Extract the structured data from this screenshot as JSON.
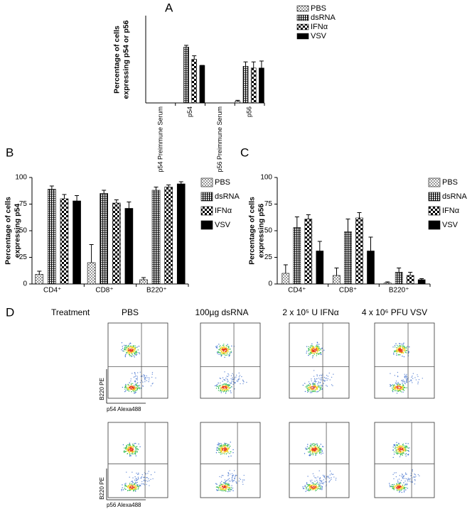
{
  "chart_data": [
    {
      "type": "bar",
      "panel": "A",
      "ylabel": [
        "Percentage of cells",
        "expressing p54 or p56"
      ],
      "categories": [
        "p54 Preimmune Serum",
        "p54",
        "p56 Preimmune Serum",
        "p56"
      ],
      "ylim": [
        0,
        100
      ],
      "series": [
        {
          "name": "PBS",
          "color": "#000000",
          "pattern": "dots",
          "values": [
            0,
            0,
            0,
            2
          ],
          "errors": [
            0,
            0,
            0,
            1
          ]
        },
        {
          "name": "dsRNA",
          "color": "#000000",
          "pattern": "stripes",
          "values": [
            0,
            64,
            0,
            42
          ],
          "errors": [
            0,
            2,
            0,
            5
          ]
        },
        {
          "name": "IFNα",
          "color": "#000000",
          "pattern": "checker",
          "values": [
            0,
            50,
            0,
            40
          ],
          "errors": [
            0,
            4,
            0,
            7
          ]
        },
        {
          "name": "VSV",
          "color": "#000000",
          "pattern": "solid",
          "values": [
            0,
            43,
            0,
            40
          ],
          "errors": [
            0,
            0,
            0,
            8
          ]
        }
      ]
    },
    {
      "type": "bar",
      "panel": "B",
      "ylabel": [
        "Percentage of cells",
        "expressing p54"
      ],
      "categories": [
        "CD4⁺",
        "CD8⁺",
        "B220⁺"
      ],
      "ylim": [
        0,
        100
      ],
      "yticks": [
        0,
        25,
        50,
        75,
        100
      ],
      "series": [
        {
          "name": "PBS",
          "color": "#000000",
          "pattern": "dots",
          "values": [
            9,
            20,
            4
          ],
          "errors": [
            3,
            17,
            2
          ]
        },
        {
          "name": "dsRNA",
          "color": "#000000",
          "pattern": "stripes",
          "values": [
            89,
            85,
            88
          ],
          "errors": [
            3,
            3,
            3
          ]
        },
        {
          "name": "IFNα",
          "color": "#000000",
          "pattern": "checker",
          "values": [
            80,
            76,
            91
          ],
          "errors": [
            4,
            3,
            2
          ]
        },
        {
          "name": "VSV",
          "color": "#000000",
          "pattern": "solid",
          "values": [
            78,
            71,
            94
          ],
          "errors": [
            5,
            6,
            2
          ]
        }
      ]
    },
    {
      "type": "bar",
      "panel": "C",
      "ylabel": [
        "Percentage of cells",
        "expressing p56"
      ],
      "categories": [
        "CD4⁺",
        "CD8⁺",
        "B220⁺"
      ],
      "ylim": [
        0,
        100
      ],
      "yticks": [
        0,
        25,
        50,
        75,
        100
      ],
      "series": [
        {
          "name": "PBS",
          "color": "#000000",
          "pattern": "dots",
          "values": [
            10,
            8,
            1
          ],
          "errors": [
            8,
            7,
            1
          ]
        },
        {
          "name": "dsRNA",
          "color": "#000000",
          "pattern": "stripes",
          "values": [
            53,
            49,
            11
          ],
          "errors": [
            10,
            12,
            4
          ]
        },
        {
          "name": "IFNα",
          "color": "#000000",
          "pattern": "checker",
          "values": [
            61,
            62,
            8
          ],
          "errors": [
            4,
            5,
            3
          ]
        },
        {
          "name": "VSV",
          "color": "#000000",
          "pattern": "solid",
          "values": [
            31,
            31,
            4
          ],
          "errors": [
            9,
            13,
            1
          ]
        }
      ]
    }
  ],
  "flow_panel": {
    "panel": "D",
    "row_label": "Treatment",
    "columns": [
      "PBS",
      "100µg dsRNA",
      "2 x 10⁵ U IFNα",
      "4 x 10⁶ PFU VSV"
    ],
    "y_axis_label": "B220 PE",
    "x_axis_labels": [
      "p54 Alexa488",
      "p56 Alexa488"
    ]
  }
}
